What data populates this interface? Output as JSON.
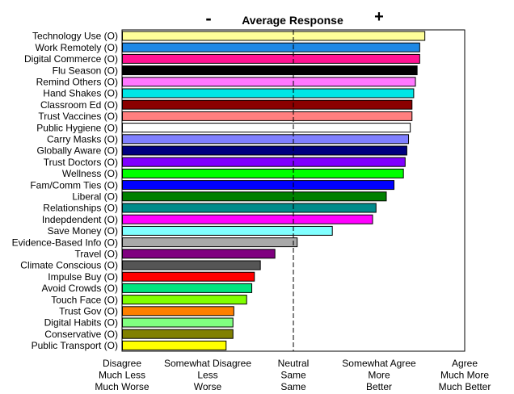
{
  "chart_data": {
    "type": "bar",
    "orientation": "horizontal",
    "title": "Average Response",
    "minus_marker": "-",
    "plus_marker": "+",
    "categories": [
      "Technology Use (O)",
      "Work Remotely (O)",
      "Digital Commerce (O)",
      "Flu Season (O)",
      "Remind Others (O)",
      "Hand Shakes (O)",
      "Classroom Ed (O)",
      "Trust Vaccines (O)",
      "Public Hygiene (O)",
      "Carry Masks (O)",
      "Globally Aware (O)",
      "Trust Doctors (O)",
      "Wellness (O)",
      "Fam/Comm Ties (O)",
      "Liberal (O)",
      "Relationships (O)",
      "Indepdendent (O)",
      "Save Money (O)",
      "Evidence-Based Info (O)",
      "Travel (O)",
      "Climate Conscious (O)",
      "Impulse Buy (O)",
      "Avoid Crowds (O)",
      "Touch Face (O)",
      "Trust Gov (O)",
      "Digital Habits (O)",
      "Conservative (O)",
      "Public Transport (O)"
    ],
    "values": [
      4.53,
      4.47,
      4.47,
      4.44,
      4.42,
      4.4,
      4.38,
      4.38,
      4.36,
      4.34,
      4.32,
      4.3,
      4.28,
      4.17,
      4.08,
      3.96,
      3.92,
      3.45,
      3.04,
      2.78,
      2.61,
      2.54,
      2.51,
      2.45,
      2.3,
      2.29,
      2.29,
      2.21
    ],
    "colors": [
      "#ffff99",
      "#1e88e5",
      "#ff1493",
      "#000000",
      "#ff77ff",
      "#00e5e5",
      "#8b0000",
      "#ff7f7f",
      "#ffffff",
      "#8080ff",
      "#000080",
      "#7f00ff",
      "#00ff00",
      "#0000ff",
      "#008000",
      "#008b8b",
      "#ff00ff",
      "#80ffff",
      "#a9a9a9",
      "#800080",
      "#555555",
      "#ff0000",
      "#00e57f",
      "#80ff00",
      "#ff8000",
      "#80ff80",
      "#808000",
      "#ffff00"
    ],
    "xlim": [
      1,
      5
    ],
    "neutral_value": 3,
    "neutral_line_style": "dashed",
    "x_ticks": [
      {
        "value": 1,
        "lines": [
          "Disagree",
          "Much Less",
          "Much Worse"
        ]
      },
      {
        "value": 2,
        "lines": [
          "Somewhat Disagree",
          "Less",
          "Worse"
        ]
      },
      {
        "value": 3,
        "lines": [
          "Neutral",
          "Same",
          "Same"
        ]
      },
      {
        "value": 4,
        "lines": [
          "Somewhat Agree",
          "More",
          "Better"
        ]
      },
      {
        "value": 5,
        "lines": [
          "Agree",
          "Much More",
          "Much Better"
        ]
      }
    ],
    "grid": false,
    "legend": "none"
  }
}
